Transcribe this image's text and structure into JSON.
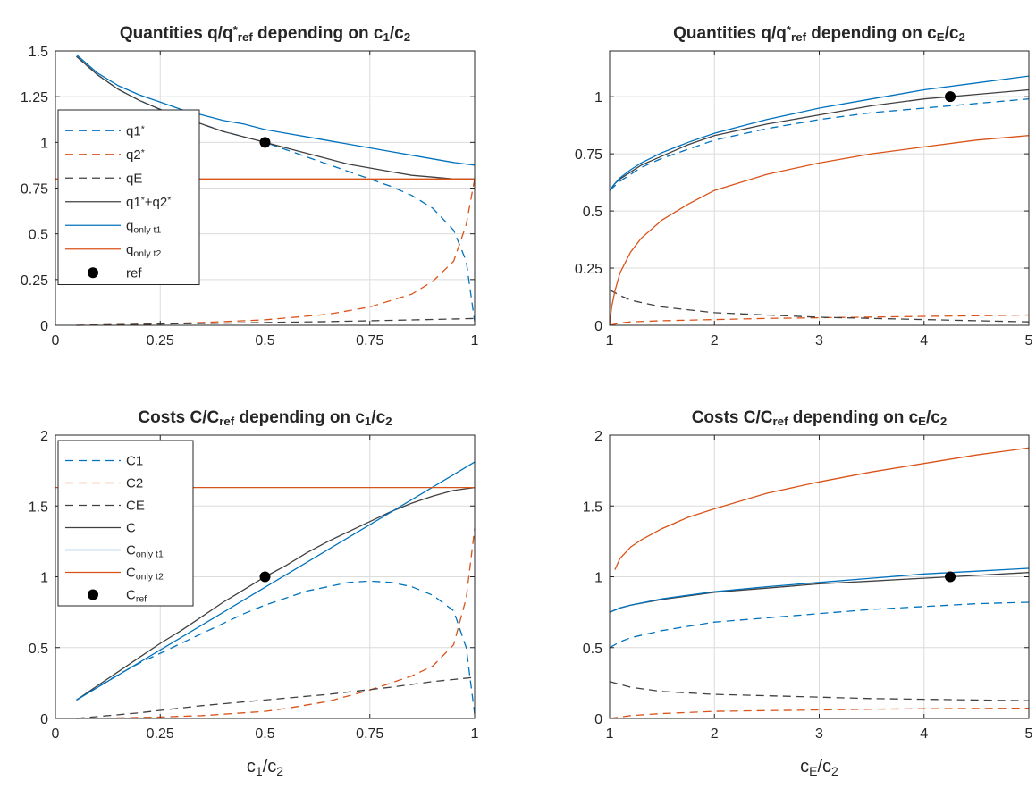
{
  "colors": {
    "blue": "#0072BD",
    "orange": "#D95319",
    "dark": "#404040",
    "grid": "#dcdcdc",
    "axis": "#262626",
    "marker": "#000000"
  },
  "chart_data": [
    {
      "type": "line",
      "title": {
        "main": "Quantities q/q",
        "sup": "*",
        "sub": "ref",
        "mid": " depending on c",
        "sub2": "1",
        "end": "/c",
        "sub3": "2"
      },
      "xlabel": {
        "main": "",
        "sub": "",
        "mid": "",
        "sub2": ""
      },
      "xlim": [
        0,
        1
      ],
      "ylim": [
        0,
        1.5
      ],
      "xticks": [
        0,
        0.25,
        0.5,
        0.75,
        1
      ],
      "xtick_labels": [
        "0",
        "0.25",
        "0.5",
        "0.75",
        "1"
      ],
      "yticks": [
        0,
        0.25,
        0.5,
        0.75,
        1,
        1.25,
        1.5
      ],
      "ytick_labels": [
        "0",
        "0.25",
        "0.5",
        "0.75",
        "1",
        "1.25",
        "1.5"
      ],
      "grid": true,
      "legend_position": "left",
      "series": [
        {
          "name": "q1",
          "name_sup": "*",
          "color": "blue",
          "dash": true,
          "x": [
            0.05,
            0.1,
            0.15,
            0.2,
            0.25,
            0.3,
            0.35,
            0.4,
            0.45,
            0.5,
            0.55,
            0.6,
            0.65,
            0.7,
            0.75,
            0.8,
            0.85,
            0.9,
            0.95,
            0.98,
            1.0
          ],
          "y": [
            1.47,
            1.37,
            1.29,
            1.23,
            1.18,
            1.14,
            1.1,
            1.06,
            1.03,
            1.0,
            0.96,
            0.92,
            0.88,
            0.84,
            0.8,
            0.76,
            0.71,
            0.64,
            0.52,
            0.35,
            0.02
          ]
        },
        {
          "name": "q2",
          "name_sup": "*",
          "color": "orange",
          "dash": true,
          "x": [
            0.05,
            0.15,
            0.25,
            0.35,
            0.45,
            0.5,
            0.55,
            0.65,
            0.75,
            0.85,
            0.9,
            0.95,
            0.98,
            1.0
          ],
          "y": [
            0.0,
            0.004,
            0.008,
            0.015,
            0.025,
            0.03,
            0.04,
            0.06,
            0.1,
            0.17,
            0.24,
            0.35,
            0.55,
            0.8
          ]
        },
        {
          "name": "qE",
          "color": "dark",
          "dash": true,
          "x": [
            0.05,
            0.2,
            0.35,
            0.5,
            0.65,
            0.8,
            0.9,
            1.0
          ],
          "y": [
            0.0,
            0.005,
            0.01,
            0.015,
            0.02,
            0.027,
            0.032,
            0.037
          ]
        },
        {
          "name": "q1",
          "name_sup": "*",
          "name_mid": "+q2",
          "name_sup2": "*",
          "color": "dark",
          "dash": false,
          "x": [
            0.05,
            0.1,
            0.15,
            0.2,
            0.25,
            0.3,
            0.35,
            0.4,
            0.45,
            0.5,
            0.55,
            0.6,
            0.65,
            0.7,
            0.75,
            0.8,
            0.85,
            0.9,
            0.95,
            1.0
          ],
          "y": [
            1.47,
            1.37,
            1.29,
            1.23,
            1.18,
            1.14,
            1.1,
            1.06,
            1.03,
            1.0,
            0.97,
            0.94,
            0.91,
            0.88,
            0.86,
            0.84,
            0.82,
            0.81,
            0.8,
            0.8
          ]
        },
        {
          "name": "q",
          "name_sub": "only t1",
          "color": "blue",
          "dash": false,
          "x": [
            0.05,
            0.1,
            0.15,
            0.2,
            0.25,
            0.3,
            0.35,
            0.4,
            0.45,
            0.5,
            0.55,
            0.6,
            0.65,
            0.7,
            0.75,
            0.8,
            0.85,
            0.9,
            0.95,
            1.0
          ],
          "y": [
            1.48,
            1.38,
            1.31,
            1.26,
            1.22,
            1.18,
            1.15,
            1.12,
            1.1,
            1.07,
            1.05,
            1.03,
            1.01,
            0.99,
            0.97,
            0.95,
            0.93,
            0.91,
            0.89,
            0.875
          ]
        },
        {
          "name": "q",
          "name_sub": "only t2",
          "color": "orange",
          "dash": false,
          "x": [
            0.0,
            1.0
          ],
          "y": [
            0.8,
            0.8
          ]
        },
        {
          "name": "ref",
          "color": "marker",
          "marker": true,
          "x": [
            0.5
          ],
          "y": [
            1.0
          ]
        }
      ]
    },
    {
      "type": "line",
      "title": {
        "main": "Quantities q/q",
        "sup": "*",
        "sub": "ref",
        "mid": " depending on c",
        "sub2": "E",
        "end": "/c",
        "sub3": "2"
      },
      "xlabel": {
        "main": "",
        "sub": "",
        "mid": "",
        "sub2": ""
      },
      "xlim": [
        1,
        5
      ],
      "ylim": [
        0,
        1.2
      ],
      "xticks": [
        1,
        2,
        3,
        4,
        5
      ],
      "xtick_labels": [
        "1",
        "2",
        "3",
        "4",
        "5"
      ],
      "yticks": [
        0,
        0.25,
        0.5,
        0.75,
        1
      ],
      "ytick_labels": [
        "0",
        "0.25",
        "0.5",
        "0.75",
        "1"
      ],
      "grid": true,
      "legend_position": "none",
      "series": [
        {
          "name": "q1*",
          "color": "blue",
          "dash": true,
          "x": [
            1.0,
            1.05,
            1.1,
            1.2,
            1.3,
            1.5,
            1.75,
            2.0,
            2.5,
            3.0,
            3.5,
            4.0,
            4.5,
            5.0
          ],
          "y": [
            0.59,
            0.61,
            0.63,
            0.66,
            0.69,
            0.73,
            0.77,
            0.81,
            0.86,
            0.9,
            0.93,
            0.95,
            0.97,
            0.99
          ]
        },
        {
          "name": "q2*",
          "color": "orange",
          "dash": true,
          "x": [
            1.0,
            1.05,
            1.1,
            1.2,
            1.5,
            2.0,
            2.5,
            3.0,
            3.5,
            4.0,
            4.5,
            5.0
          ],
          "y": [
            0.0,
            0.005,
            0.01,
            0.015,
            0.02,
            0.025,
            0.03,
            0.033,
            0.036,
            0.039,
            0.042,
            0.045
          ]
        },
        {
          "name": "qE",
          "color": "dark",
          "dash": true,
          "x": [
            1.0,
            1.1,
            1.2,
            1.5,
            2.0,
            2.5,
            3.0,
            3.5,
            4.0,
            4.5,
            5.0
          ],
          "y": [
            0.155,
            0.13,
            0.11,
            0.08,
            0.055,
            0.045,
            0.035,
            0.03,
            0.025,
            0.02,
            0.015
          ]
        },
        {
          "name": "q1*+q2*",
          "color": "dark",
          "dash": false,
          "x": [
            1.0,
            1.05,
            1.1,
            1.2,
            1.3,
            1.5,
            1.75,
            2.0,
            2.5,
            3.0,
            3.5,
            4.0,
            4.5,
            5.0
          ],
          "y": [
            0.59,
            0.62,
            0.64,
            0.67,
            0.7,
            0.74,
            0.79,
            0.83,
            0.88,
            0.92,
            0.96,
            0.99,
            1.01,
            1.03
          ]
        },
        {
          "name": "q only t1",
          "color": "blue",
          "dash": false,
          "x": [
            1.0,
            1.05,
            1.1,
            1.2,
            1.3,
            1.5,
            1.75,
            2.0,
            2.5,
            3.0,
            3.5,
            4.0,
            4.5,
            5.0
          ],
          "y": [
            0.59,
            0.62,
            0.645,
            0.68,
            0.71,
            0.755,
            0.8,
            0.84,
            0.9,
            0.95,
            0.99,
            1.03,
            1.06,
            1.09
          ]
        },
        {
          "name": "q only t2",
          "color": "orange",
          "dash": false,
          "x": [
            1.0,
            1.02,
            1.05,
            1.1,
            1.2,
            1.3,
            1.5,
            1.75,
            2.0,
            2.5,
            3.0,
            3.5,
            4.0,
            4.5,
            5.0
          ],
          "y": [
            0.0,
            0.08,
            0.15,
            0.23,
            0.32,
            0.38,
            0.46,
            0.53,
            0.59,
            0.66,
            0.71,
            0.75,
            0.78,
            0.81,
            0.83
          ]
        },
        {
          "name": "ref",
          "color": "marker",
          "marker": true,
          "x": [
            4.25
          ],
          "y": [
            1.0
          ]
        }
      ]
    },
    {
      "type": "line",
      "title": {
        "main": "Costs C/C",
        "sup": "",
        "sub": "ref",
        "mid": " depending on c",
        "sub2": "1",
        "end": "/c",
        "sub3": "2"
      },
      "xlabel": {
        "main": "c",
        "sub": "1",
        "mid": "/c",
        "sub2": "2"
      },
      "xlim": [
        0,
        1
      ],
      "ylim": [
        0,
        2
      ],
      "xticks": [
        0,
        0.25,
        0.5,
        0.75,
        1
      ],
      "xtick_labels": [
        "0",
        "0.25",
        "0.5",
        "0.75",
        "1"
      ],
      "yticks": [
        0,
        0.5,
        1,
        1.5,
        2
      ],
      "ytick_labels": [
        "0",
        "0.5",
        "1",
        "1.5",
        "2"
      ],
      "grid": true,
      "legend_position": "left",
      "series": [
        {
          "name": "C1",
          "color": "blue",
          "dash": true,
          "x": [
            0.05,
            0.1,
            0.15,
            0.2,
            0.25,
            0.3,
            0.35,
            0.4,
            0.45,
            0.5,
            0.55,
            0.6,
            0.65,
            0.7,
            0.75,
            0.8,
            0.85,
            0.9,
            0.95,
            0.98,
            1.0
          ],
          "y": [
            0.13,
            0.22,
            0.31,
            0.39,
            0.46,
            0.53,
            0.6,
            0.67,
            0.74,
            0.8,
            0.85,
            0.9,
            0.93,
            0.96,
            0.97,
            0.96,
            0.93,
            0.87,
            0.76,
            0.5,
            0.03
          ]
        },
        {
          "name": "C2",
          "color": "orange",
          "dash": true,
          "x": [
            0.05,
            0.15,
            0.25,
            0.35,
            0.45,
            0.5,
            0.55,
            0.65,
            0.75,
            0.85,
            0.9,
            0.95,
            0.98,
            1.0
          ],
          "y": [
            0.0,
            0.004,
            0.01,
            0.02,
            0.04,
            0.05,
            0.07,
            0.12,
            0.2,
            0.3,
            0.37,
            0.52,
            0.85,
            1.34
          ]
        },
        {
          "name": "CE",
          "color": "dark",
          "dash": true,
          "x": [
            0.05,
            0.2,
            0.35,
            0.5,
            0.65,
            0.8,
            0.9,
            1.0
          ],
          "y": [
            0.0,
            0.04,
            0.09,
            0.13,
            0.17,
            0.22,
            0.26,
            0.29
          ]
        },
        {
          "name": "C",
          "color": "dark",
          "dash": false,
          "x": [
            0.05,
            0.1,
            0.15,
            0.2,
            0.25,
            0.3,
            0.35,
            0.4,
            0.45,
            0.5,
            0.55,
            0.6,
            0.65,
            0.7,
            0.75,
            0.8,
            0.85,
            0.9,
            0.95,
            1.0
          ],
          "y": [
            0.13,
            0.23,
            0.33,
            0.43,
            0.53,
            0.62,
            0.72,
            0.82,
            0.91,
            1.0,
            1.08,
            1.17,
            1.25,
            1.32,
            1.39,
            1.46,
            1.52,
            1.57,
            1.61,
            1.63
          ]
        },
        {
          "name": "C",
          "name_sub": "only t1",
          "color": "blue",
          "dash": false,
          "x": [
            0.05,
            1.0
          ],
          "y": [
            0.13,
            1.81
          ]
        },
        {
          "name": "C",
          "name_sub": "only t2",
          "color": "orange",
          "dash": false,
          "x": [
            0.0,
            1.0
          ],
          "y": [
            1.63,
            1.63
          ]
        },
        {
          "name": "C",
          "name_sub": "ref",
          "color": "marker",
          "marker": true,
          "x": [
            0.5
          ],
          "y": [
            1.0
          ]
        }
      ]
    },
    {
      "type": "line",
      "title": {
        "main": "Costs C/C",
        "sup": "",
        "sub": "ref",
        "mid": " depending on c",
        "sub2": "E",
        "end": "/c",
        "sub3": "2"
      },
      "xlabel": {
        "main": "c",
        "sub": "E",
        "mid": "/c",
        "sub2": "2"
      },
      "xlim": [
        1,
        5
      ],
      "ylim": [
        0,
        2
      ],
      "xticks": [
        1,
        2,
        3,
        4,
        5
      ],
      "xtick_labels": [
        "1",
        "2",
        "3",
        "4",
        "5"
      ],
      "yticks": [
        0,
        0.5,
        1,
        1.5,
        2
      ],
      "ytick_labels": [
        "0",
        "0.5",
        "1",
        "1.5",
        "2"
      ],
      "grid": true,
      "legend_position": "none",
      "series": [
        {
          "name": "C1",
          "color": "blue",
          "dash": true,
          "x": [
            1.0,
            1.1,
            1.2,
            1.5,
            2.0,
            2.5,
            3.0,
            3.5,
            4.0,
            4.5,
            5.0
          ],
          "y": [
            0.5,
            0.54,
            0.57,
            0.62,
            0.68,
            0.71,
            0.74,
            0.77,
            0.79,
            0.81,
            0.82
          ]
        },
        {
          "name": "C2",
          "color": "orange",
          "dash": true,
          "x": [
            1.0,
            1.1,
            1.2,
            1.5,
            2.0,
            2.5,
            3.0,
            3.5,
            4.0,
            4.5,
            5.0
          ],
          "y": [
            0.0,
            0.01,
            0.02,
            0.035,
            0.05,
            0.055,
            0.06,
            0.065,
            0.068,
            0.07,
            0.072
          ]
        },
        {
          "name": "CE",
          "color": "dark",
          "dash": true,
          "x": [
            1.0,
            1.2,
            1.5,
            2.0,
            2.5,
            3.0,
            3.5,
            4.0,
            4.5,
            5.0
          ],
          "y": [
            0.26,
            0.22,
            0.19,
            0.17,
            0.16,
            0.15,
            0.14,
            0.135,
            0.13,
            0.125
          ]
        },
        {
          "name": "C",
          "color": "dark",
          "dash": false,
          "x": [
            1.0,
            1.1,
            1.2,
            1.5,
            2.0,
            2.5,
            3.0,
            3.5,
            4.0,
            4.5,
            5.0
          ],
          "y": [
            0.75,
            0.78,
            0.8,
            0.84,
            0.89,
            0.92,
            0.95,
            0.97,
            0.99,
            1.01,
            1.03
          ]
        },
        {
          "name": "C only t1",
          "color": "blue",
          "dash": false,
          "x": [
            1.0,
            1.1,
            1.2,
            1.5,
            2.0,
            2.5,
            3.0,
            3.5,
            4.0,
            4.5,
            5.0
          ],
          "y": [
            0.75,
            0.78,
            0.8,
            0.845,
            0.895,
            0.93,
            0.96,
            0.99,
            1.02,
            1.04,
            1.06
          ]
        },
        {
          "name": "C only t2",
          "color": "orange",
          "dash": false,
          "x": [
            1.05,
            1.1,
            1.2,
            1.3,
            1.5,
            1.75,
            2.0,
            2.5,
            3.0,
            3.5,
            4.0,
            4.5,
            5.0
          ],
          "y": [
            1.05,
            1.13,
            1.21,
            1.26,
            1.34,
            1.42,
            1.48,
            1.59,
            1.67,
            1.74,
            1.8,
            1.86,
            1.91
          ]
        },
        {
          "name": "C ref",
          "color": "marker",
          "marker": true,
          "x": [
            4.25
          ],
          "y": [
            1.0
          ]
        }
      ]
    }
  ]
}
